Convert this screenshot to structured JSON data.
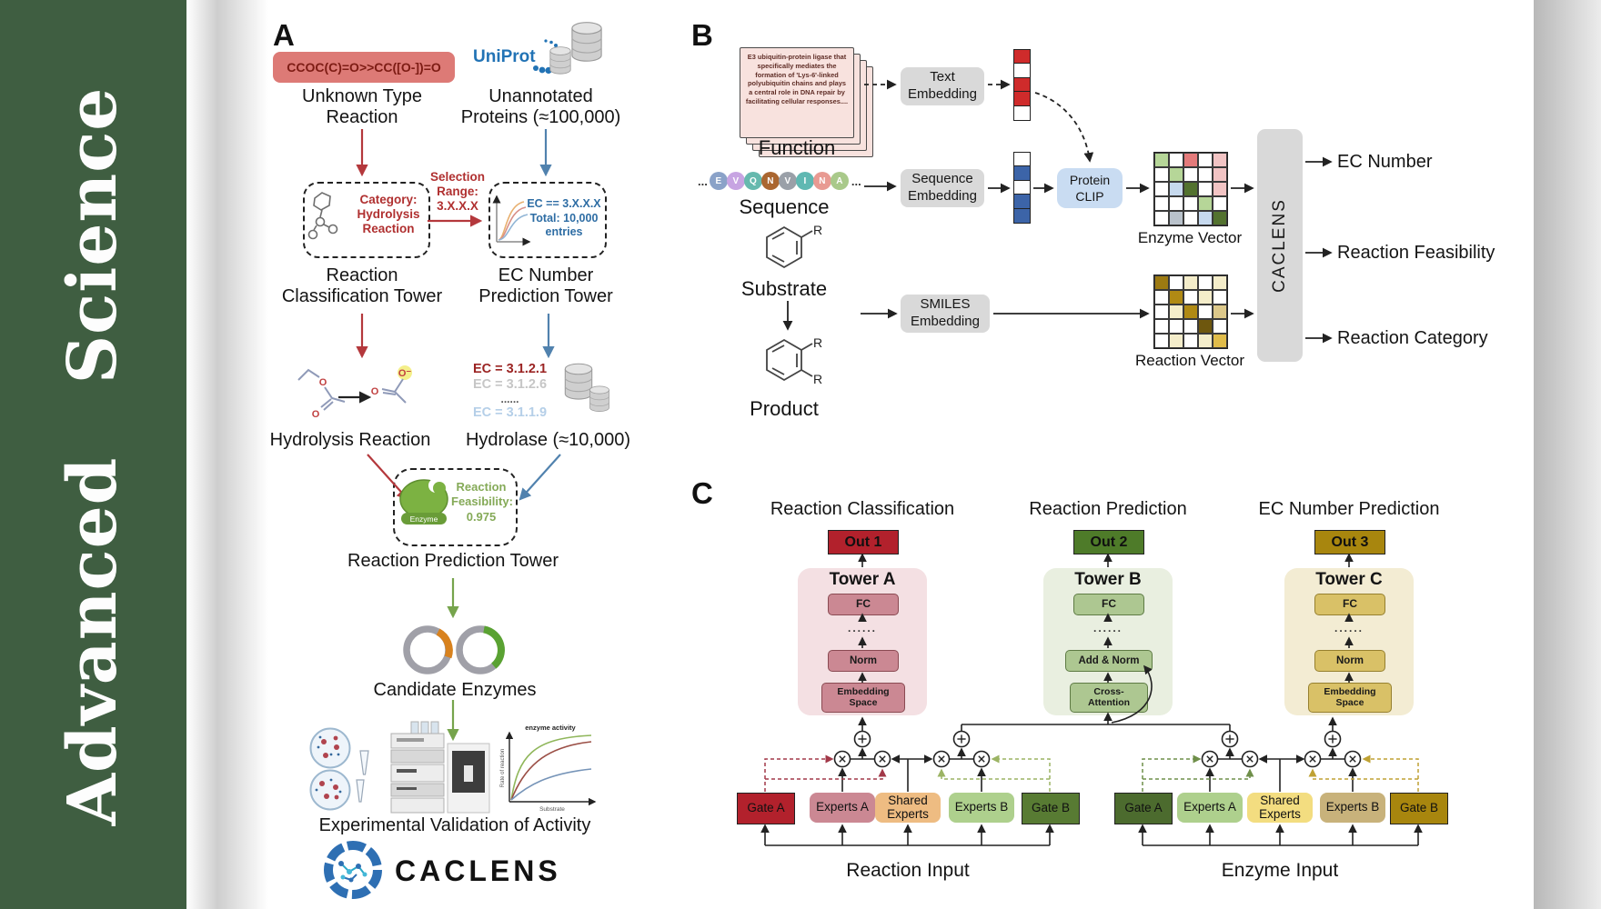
{
  "journal": {
    "name": "Advanced   Science"
  },
  "colors": {
    "sidebar_green": "#3f5e41",
    "arrow_red": "#b4383c",
    "arrow_blue": "#5182ae",
    "arrow_green": "#76a44c",
    "out1": "#b2212c",
    "out2": "#4e7b29",
    "out3": "#a8860e",
    "tower_a_bg": "#f4e0e3",
    "tower_b_bg": "#e9efe0",
    "tower_c_bg": "#f3ecd3"
  },
  "panelA": {
    "label": "A",
    "smiles_reaction": "CCOC(C)=O>>CC([O-])=O",
    "unknown_type": "Unknown Type\nReaction",
    "uniprot": "UniProt",
    "unannotated": "Unannotated\nProteins (≈100,000)",
    "category_box": "Category:\nHydrolysis\nReaction",
    "selection": "Selection\nRange:\n3.X.X.X",
    "ec_box": "EC == 3.X.X.X\nTotal: 10,000\nentries",
    "rc_tower": "Reaction\nClassification Tower",
    "ec_tower": "EC Number\nPrediction Tower",
    "ec_list": {
      "l1": "EC = 3.1.2.1",
      "l2": "EC = 3.1.2.6",
      "dots": "......",
      "l3": "EC = 3.1.1.9"
    },
    "hydrolysis": "Hydrolysis Reaction",
    "hydrolase": "Hydrolase (≈10,000)",
    "enzyme_tag": "Enzyme",
    "feasibility": "Reaction\nFeasibility:\n0.975",
    "rp_tower": "Reaction Prediction Tower",
    "candidate": "Candidate Enzymes",
    "experimental": "Experimental Validation of Activity",
    "logo_text": "CACLENS",
    "atom_o": "O",
    "atom_o_minus": "O⁻",
    "plot": {
      "title": "enzyme activity",
      "ylabel": "Rate of reaction",
      "xlabel": "Substrate"
    }
  },
  "panelB": {
    "label": "B",
    "function_text": "E3 ubiquitin-protein ligase that specifically mediates the formation of 'Lys-6'-linked polyubiquitin chains and plays a central role in DNA repair by facilitating cellular responses....",
    "function_label": "Function",
    "sequence_label": "Sequence",
    "substrate_label": "Substrate",
    "product_label": "Product",
    "r_label": "R",
    "ellipsis": "...",
    "residues": [
      {
        "letter": "E",
        "color": "#8aa2c8"
      },
      {
        "letter": "V",
        "color": "#c7a4e2"
      },
      {
        "letter": "Q",
        "color": "#66b9ae"
      },
      {
        "letter": "N",
        "color": "#aa6630"
      },
      {
        "letter": "V",
        "color": "#9aa0a8"
      },
      {
        "letter": "I",
        "color": "#5fb8b2"
      },
      {
        "letter": "N",
        "color": "#e89a92"
      },
      {
        "letter": "A",
        "color": "#a9c98a"
      }
    ],
    "text_embedding": "Text\nEmbedding",
    "sequence_embedding": "Sequence\nEmbedding",
    "smiles_embedding": "SMILES\nEmbedding",
    "protein_clip": "Protein\nCLIP",
    "text_vector": [
      "r",
      "w",
      "r",
      "r",
      "w"
    ],
    "sequence_vector": [
      "w",
      "b",
      "w",
      "b",
      "b"
    ],
    "vector_palette": {
      "r": "#cf2b2b",
      "b": "#3c64a8",
      "w": "#ffffff"
    },
    "enzyme_vector_label": "Enzyme Vector",
    "reaction_vector_label": "Reaction Vector",
    "enzyme_grid": [
      "lg",
      "w",
      "rd",
      "w",
      "pk",
      "w",
      "lg",
      "w",
      "w",
      "pk",
      "w",
      "lb",
      "dg",
      "w",
      "pk",
      "w",
      "w",
      "w",
      "lg",
      "w",
      "w",
      "gy",
      "w",
      "lb",
      "dg"
    ],
    "reaction_grid": [
      "dk",
      "w",
      "py",
      "w",
      "py",
      "w",
      "go",
      "w",
      "py",
      "w",
      "w",
      "py",
      "go",
      "w",
      "tn",
      "w",
      "w",
      "w",
      "db",
      "w",
      "w",
      "py",
      "w",
      "py",
      "yl"
    ],
    "grid_palette": {
      "lg": "#b6d698",
      "rd": "#e47b7b",
      "pk": "#f2c4c4",
      "lb": "#c6d9ee",
      "dg": "#53722f",
      "gy": "#b9c2cb",
      "w": "#ffffff",
      "dk": "#9d7a12",
      "go": "#b08a14",
      "py": "#f4edca",
      "tn": "#dcc88a",
      "db": "#6e570e",
      "yl": "#e0bc4a"
    },
    "caclens": "CACLENS",
    "outputs": {
      "ec": "EC Number",
      "feasibility": "Reaction Feasibility",
      "category": "Reaction Category"
    }
  },
  "panelC": {
    "label": "C",
    "headers": {
      "a": "Reaction Classification",
      "b": "Reaction Prediction",
      "c": "EC Number Prediction"
    },
    "outs": {
      "a": "Out 1",
      "b": "Out 2",
      "c": "Out 3"
    },
    "towers": {
      "a": {
        "title": "Tower A",
        "fc": "FC",
        "dots": "......",
        "mid": "Norm",
        "bottom": "Embedding\nSpace"
      },
      "b": {
        "title": "Tower B",
        "fc": "FC",
        "dots": "......",
        "mid": "Add & Norm",
        "bottom": "Cross-\nAttention"
      },
      "c": {
        "title": "Tower C",
        "fc": "FC",
        "dots": "......",
        "mid": "Norm",
        "bottom": "Embedding\nSpace"
      }
    },
    "moe": {
      "reaction": {
        "label": "Reaction Input",
        "boxes": [
          {
            "label": "Gate A",
            "bg": "#b2212c",
            "name": "reaction-gate-a-box"
          },
          {
            "label": "Experts A",
            "bg": "#cb8893",
            "name": "reaction-experts-a-box"
          },
          {
            "label": "Shared\nExperts",
            "bg": "#eebc82",
            "name": "reaction-shared-experts-box"
          },
          {
            "label": "Experts B",
            "bg": "#aed08d",
            "name": "reaction-experts-b-box"
          },
          {
            "label": "Gate B",
            "bg": "#587b33",
            "name": "reaction-gate-b-box"
          }
        ]
      },
      "enzyme": {
        "label": "Enzyme Input",
        "boxes": [
          {
            "label": "Gate A",
            "bg": "#4c6b2e",
            "name": "enzyme-gate-a-box"
          },
          {
            "label": "Experts A",
            "bg": "#aed08d",
            "name": "enzyme-experts-a-box"
          },
          {
            "label": "Shared\nExperts",
            "bg": "#f3dd80",
            "name": "enzyme-shared-experts-box"
          },
          {
            "label": "Experts B",
            "bg": "#c8b27b",
            "name": "enzyme-experts-b-box"
          },
          {
            "label": "Gate B",
            "bg": "#a8860e",
            "name": "enzyme-gate-b-box"
          }
        ]
      }
    }
  }
}
